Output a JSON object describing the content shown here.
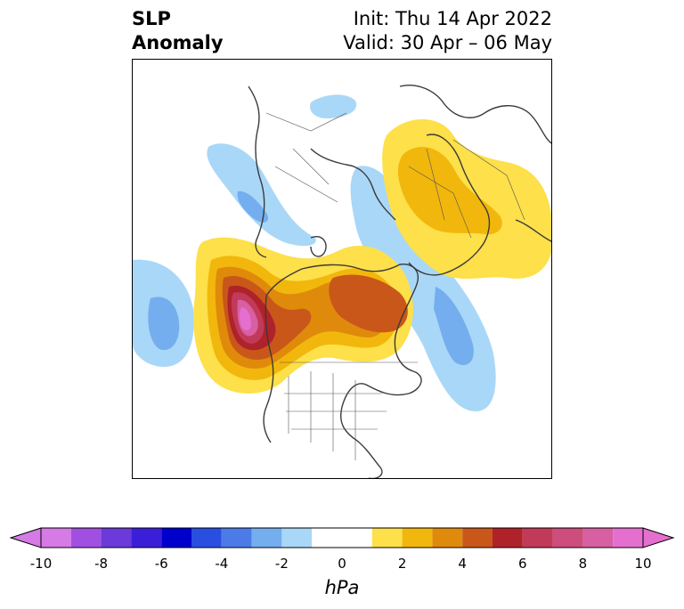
{
  "title": {
    "left_line1": "SLP",
    "left_line2": "Anomaly",
    "right_line1": "Init: Thu 14 Apr 2022",
    "right_line2": "Valid: 30 Apr – 06 May"
  },
  "colorbar": {
    "units": "hPa",
    "ticks": [
      "-10",
      "-8",
      "-6",
      "-4",
      "-2",
      "0",
      "2",
      "4",
      "6",
      "8",
      "10"
    ],
    "colors": [
      "#d67ae6",
      "#a04fe0",
      "#6b3ad8",
      "#3b1fd8",
      "#0000cc",
      "#2a4ee0",
      "#4c7be8",
      "#74aeef",
      "#a9d7f7",
      "#ffffff",
      "#fde04a",
      "#f2b70c",
      "#e08a0c",
      "#c9571a",
      "#b0222a",
      "#c23a5a",
      "#cd4d7c",
      "#d85fa2",
      "#e46fcf"
    ],
    "extend_colors": {
      "low": "#d67ae6",
      "high": "#e46fcf"
    }
  },
  "map": {
    "features": [
      "SLP anomaly contours",
      "coastlines",
      "country borders",
      "US state borders"
    ],
    "anomaly_centers": [
      {
        "name": "positive-anomaly-northeast-pacific",
        "peak_hPa": 10
      },
      {
        "name": "positive-anomaly-canada",
        "peak_hPa": 6
      },
      {
        "name": "positive-anomaly-siberia",
        "peak_hPa": 4
      },
      {
        "name": "negative-anomaly-west-pacific",
        "peak_hPa": -4
      },
      {
        "name": "negative-anomaly-atlantic",
        "peak_hPa": -4
      },
      {
        "name": "negative-anomaly-europe",
        "peak_hPa": -3
      }
    ]
  }
}
